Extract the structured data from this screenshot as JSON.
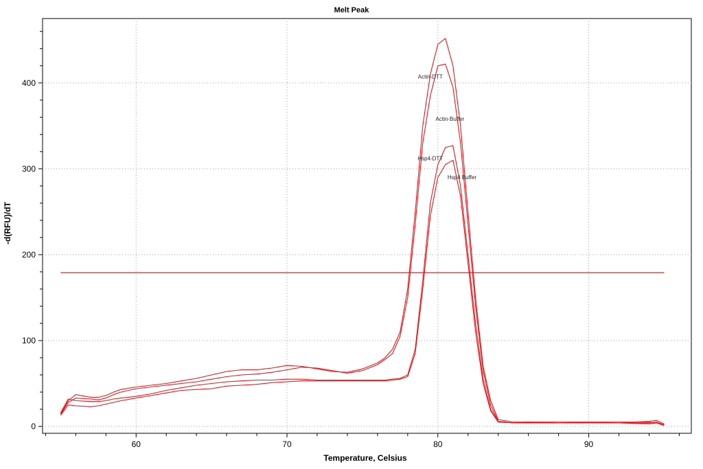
{
  "chart_data": {
    "type": "line",
    "title": "Melt Peak",
    "xlabel": "Temperature, Celsius",
    "ylabel": "-d(RFU)/dT",
    "xlim": [
      53.8,
      96.8
    ],
    "ylim": [
      -8,
      475
    ],
    "xticks": [
      60,
      70,
      80,
      90
    ],
    "yticks": [
      0,
      100,
      200,
      300,
      400
    ],
    "grid": true,
    "line_color": "#e8171b",
    "threshold": {
      "y": 179,
      "x_start": 55,
      "x_end": 95
    },
    "annotations": [
      {
        "text": "Actin-DTT",
        "x": 79.5,
        "y": 405
      },
      {
        "text": "Actin-Buffer",
        "x": 80.8,
        "y": 356
      },
      {
        "text": "Hsp4-DTT",
        "x": 79.5,
        "y": 310
      },
      {
        "text": "Hsp4 Buffer",
        "x": 81.6,
        "y": 288
      }
    ],
    "x": [
      55,
      55.5,
      56,
      57,
      57.5,
      58,
      58.5,
      59,
      60,
      61,
      62,
      63,
      64,
      65,
      66,
      67,
      68,
      69,
      70,
      71,
      72,
      73,
      74,
      75,
      76,
      76.5,
      77,
      77.5,
      78,
      78.5,
      79,
      79.5,
      80,
      80.5,
      81,
      81.5,
      82,
      82.5,
      83,
      83.5,
      84,
      85,
      86,
      88,
      90,
      92,
      94,
      94.5,
      95
    ],
    "series": [
      {
        "values": [
          15,
          30,
          37,
          34,
          34,
          36,
          40,
          43,
          46,
          48,
          50,
          53,
          56,
          60,
          64,
          66,
          66,
          68,
          71,
          70,
          67,
          64,
          63,
          67,
          74,
          80,
          90,
          110,
          160,
          250,
          350,
          410,
          445,
          452,
          420,
          350,
          250,
          150,
          70,
          30,
          8,
          5,
          5,
          5,
          5,
          5,
          5,
          4,
          2
        ]
      },
      {
        "values": [
          14,
          28,
          33,
          32,
          31,
          33,
          37,
          40,
          44,
          46,
          48,
          50,
          52,
          55,
          58,
          60,
          61,
          63,
          66,
          69,
          68,
          65,
          62,
          65,
          72,
          78,
          85,
          105,
          150,
          235,
          330,
          385,
          420,
          422,
          395,
          330,
          235,
          140,
          65,
          25,
          6,
          4,
          5,
          4,
          4,
          4,
          6,
          7,
          3
        ]
      },
      {
        "values": [
          16,
          32,
          30,
          29,
          29,
          30,
          32,
          33,
          35,
          38,
          42,
          45,
          48,
          50,
          52,
          53,
          54,
          54,
          55,
          55,
          54,
          54,
          54,
          54,
          54,
          54,
          55,
          56,
          60,
          90,
          170,
          260,
          305,
          325,
          327,
          280,
          200,
          120,
          55,
          20,
          6,
          4,
          5,
          4,
          5,
          4,
          4,
          5,
          2
        ]
      },
      {
        "values": [
          13,
          25,
          24,
          23,
          24,
          26,
          28,
          30,
          33,
          36,
          39,
          42,
          43,
          44,
          47,
          48,
          49,
          51,
          52,
          53,
          53,
          53,
          53,
          53,
          53,
          53,
          54,
          55,
          58,
          85,
          160,
          245,
          290,
          305,
          310,
          268,
          190,
          110,
          50,
          18,
          5,
          4,
          4,
          4,
          4,
          4,
          3,
          4,
          1
        ]
      }
    ]
  }
}
